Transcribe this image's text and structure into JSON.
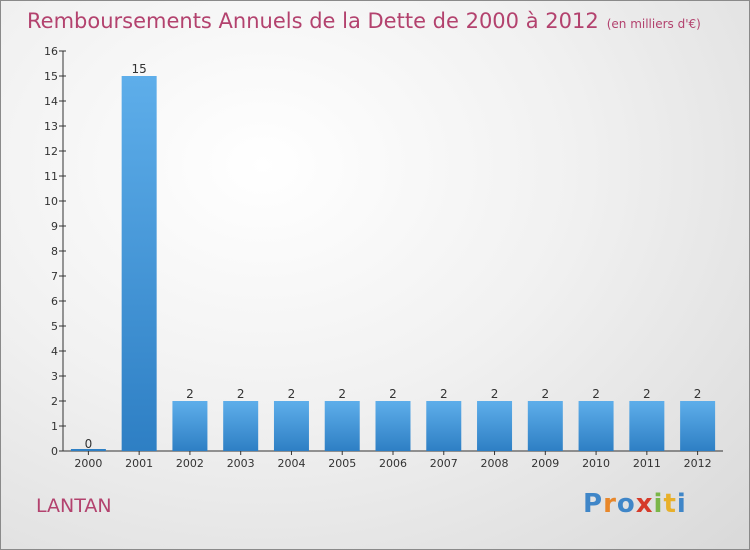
{
  "header": {
    "title": "Remboursements Annuels de la Dette de 2000 à 2012",
    "subtitle": "(en milliers d'€)"
  },
  "commune": "LANTAN",
  "logo": {
    "text": "Proxiti",
    "colors": [
      "#3f86c8",
      "#e8872a",
      "#3f86c8",
      "#d63b2a",
      "#7ab648",
      "#e8b02a",
      "#3f86c8"
    ]
  },
  "colors": {
    "title": "#b3426e",
    "bar_top": "#5eaeea",
    "bar_bottom": "#2e7fc4",
    "axis": "#333333",
    "text": "#333333"
  },
  "chart_data": {
    "type": "bar",
    "title": "Remboursements Annuels de la Dette de 2000 à 2012",
    "subtitle": "(en milliers d'€)",
    "categories": [
      "2000",
      "2001",
      "2002",
      "2003",
      "2004",
      "2005",
      "2006",
      "2007",
      "2008",
      "2009",
      "2010",
      "2011",
      "2012"
    ],
    "values": [
      0,
      15,
      2,
      2,
      2,
      2,
      2,
      2,
      2,
      2,
      2,
      2,
      2
    ],
    "data_labels": [
      "0",
      "15",
      "2",
      "2",
      "2",
      "2",
      "2",
      "2",
      "2",
      "2",
      "2",
      "2",
      "2"
    ],
    "yticks": [
      0,
      1,
      2,
      3,
      4,
      5,
      6,
      7,
      8,
      9,
      10,
      11,
      12,
      13,
      14,
      15,
      16
    ],
    "ylim": [
      0,
      16
    ],
    "xlabel": "",
    "ylabel": "",
    "grid": false,
    "legend": "none"
  }
}
